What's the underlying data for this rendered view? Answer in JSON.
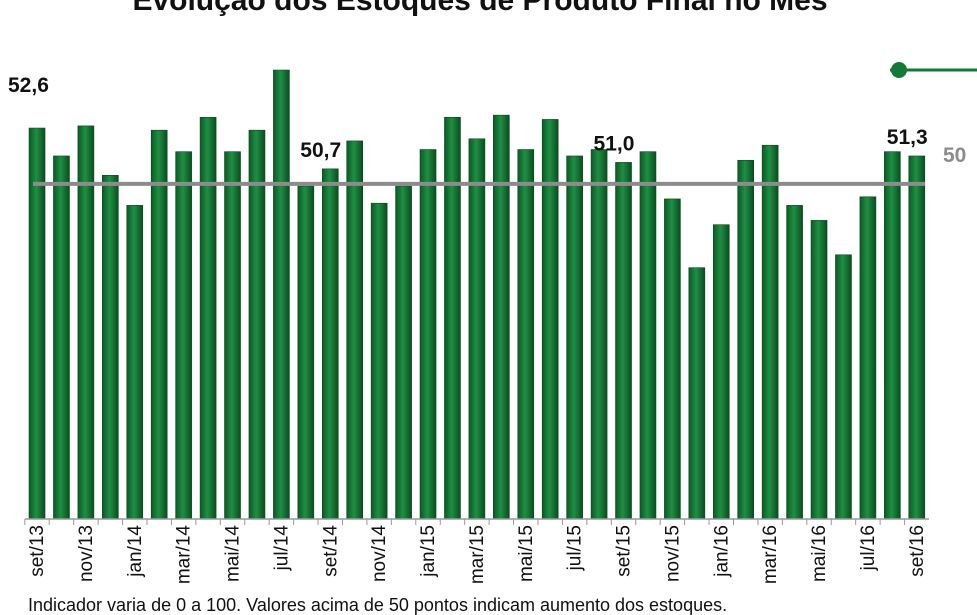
{
  "chart_data": {
    "type": "bar",
    "title": "Evolução dos Estoques de Produto Final no Mês",
    "note": "Indicador varia de 0 a 100. Valores acima de 50 pontos indicam aumento dos estoques.",
    "categories": [
      "set/13",
      null,
      "nov/13",
      null,
      "jan/14",
      null,
      "mar/14",
      null,
      "mai/14",
      null,
      "jul/14",
      null,
      "set/14",
      null,
      "nov/14",
      null,
      "jan/15",
      null,
      "mar/15",
      null,
      "mai/15",
      null,
      "jul/15",
      null,
      "set/15",
      null,
      "nov/15",
      null,
      "jan/16",
      null,
      "mar/16",
      null,
      "mai/16",
      null,
      "jul/16",
      null,
      "set/16"
    ],
    "values": [
      52.6,
      51.3,
      52.7,
      50.4,
      49.0,
      52.5,
      51.5,
      53.1,
      51.5,
      52.5,
      55.3,
      49.9,
      50.7,
      52.0,
      49.1,
      49.9,
      51.6,
      53.1,
      52.1,
      53.2,
      51.6,
      53.0,
      51.3,
      51.6,
      51.0,
      51.5,
      49.3,
      46.1,
      48.1,
      51.1,
      51.8,
      49.0,
      48.3,
      46.7,
      49.4,
      51.5,
      51.3
    ],
    "value_labels": [
      "52,6",
      null,
      null,
      null,
      null,
      null,
      null,
      null,
      null,
      null,
      null,
      null,
      "50,7",
      null,
      null,
      null,
      null,
      null,
      null,
      null,
      null,
      null,
      null,
      null,
      "51,0",
      null,
      null,
      null,
      null,
      null,
      null,
      null,
      null,
      null,
      null,
      null,
      "51,3"
    ],
    "color": "#137a35",
    "reference_line": 50,
    "ylim": [
      34.4,
      56
    ]
  }
}
